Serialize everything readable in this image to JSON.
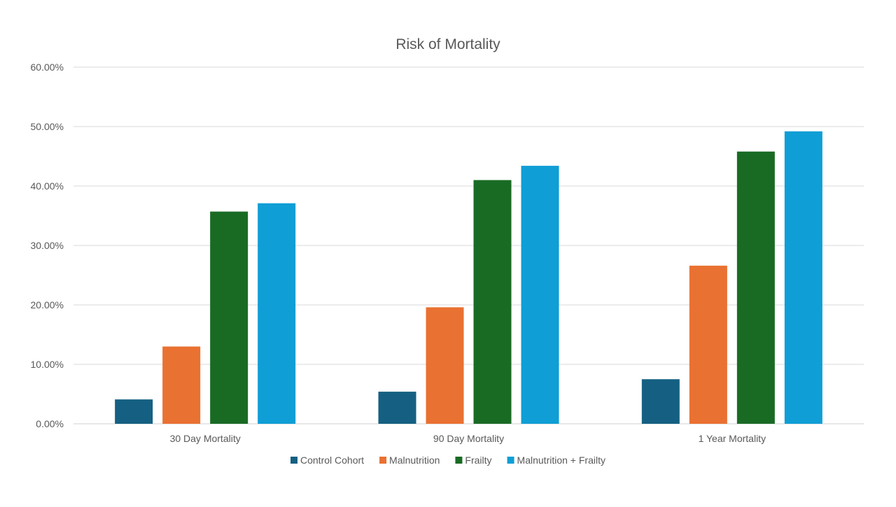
{
  "chart_data": {
    "type": "bar",
    "title": "Risk of Mortality",
    "xlabel": "",
    "ylabel": "",
    "categories": [
      "30 Day Mortality",
      "90 Day Mortality",
      "1 Year Mortality"
    ],
    "series": [
      {
        "name": "Control Cohort",
        "color": "#156082",
        "values": [
          4.1,
          5.4,
          7.5
        ]
      },
      {
        "name": "Malnutrition",
        "color": "#E97132",
        "values": [
          13.0,
          19.6,
          26.6
        ]
      },
      {
        "name": "Frailty",
        "color": "#196B24",
        "values": [
          35.7,
          41.0,
          45.8
        ]
      },
      {
        "name": "Malnutrition + Frailty",
        "color": "#0F9ED5",
        "values": [
          37.1,
          43.4,
          49.2
        ]
      }
    ],
    "ylim": [
      0,
      60
    ],
    "yticks": [
      0,
      10,
      20,
      30,
      40,
      50,
      60
    ],
    "ytick_labels": [
      "0.00%",
      "10.00%",
      "20.00%",
      "30.00%",
      "40.00%",
      "50.00%",
      "60.00%"
    ],
    "grid": true,
    "legend_position": "bottom-center"
  }
}
